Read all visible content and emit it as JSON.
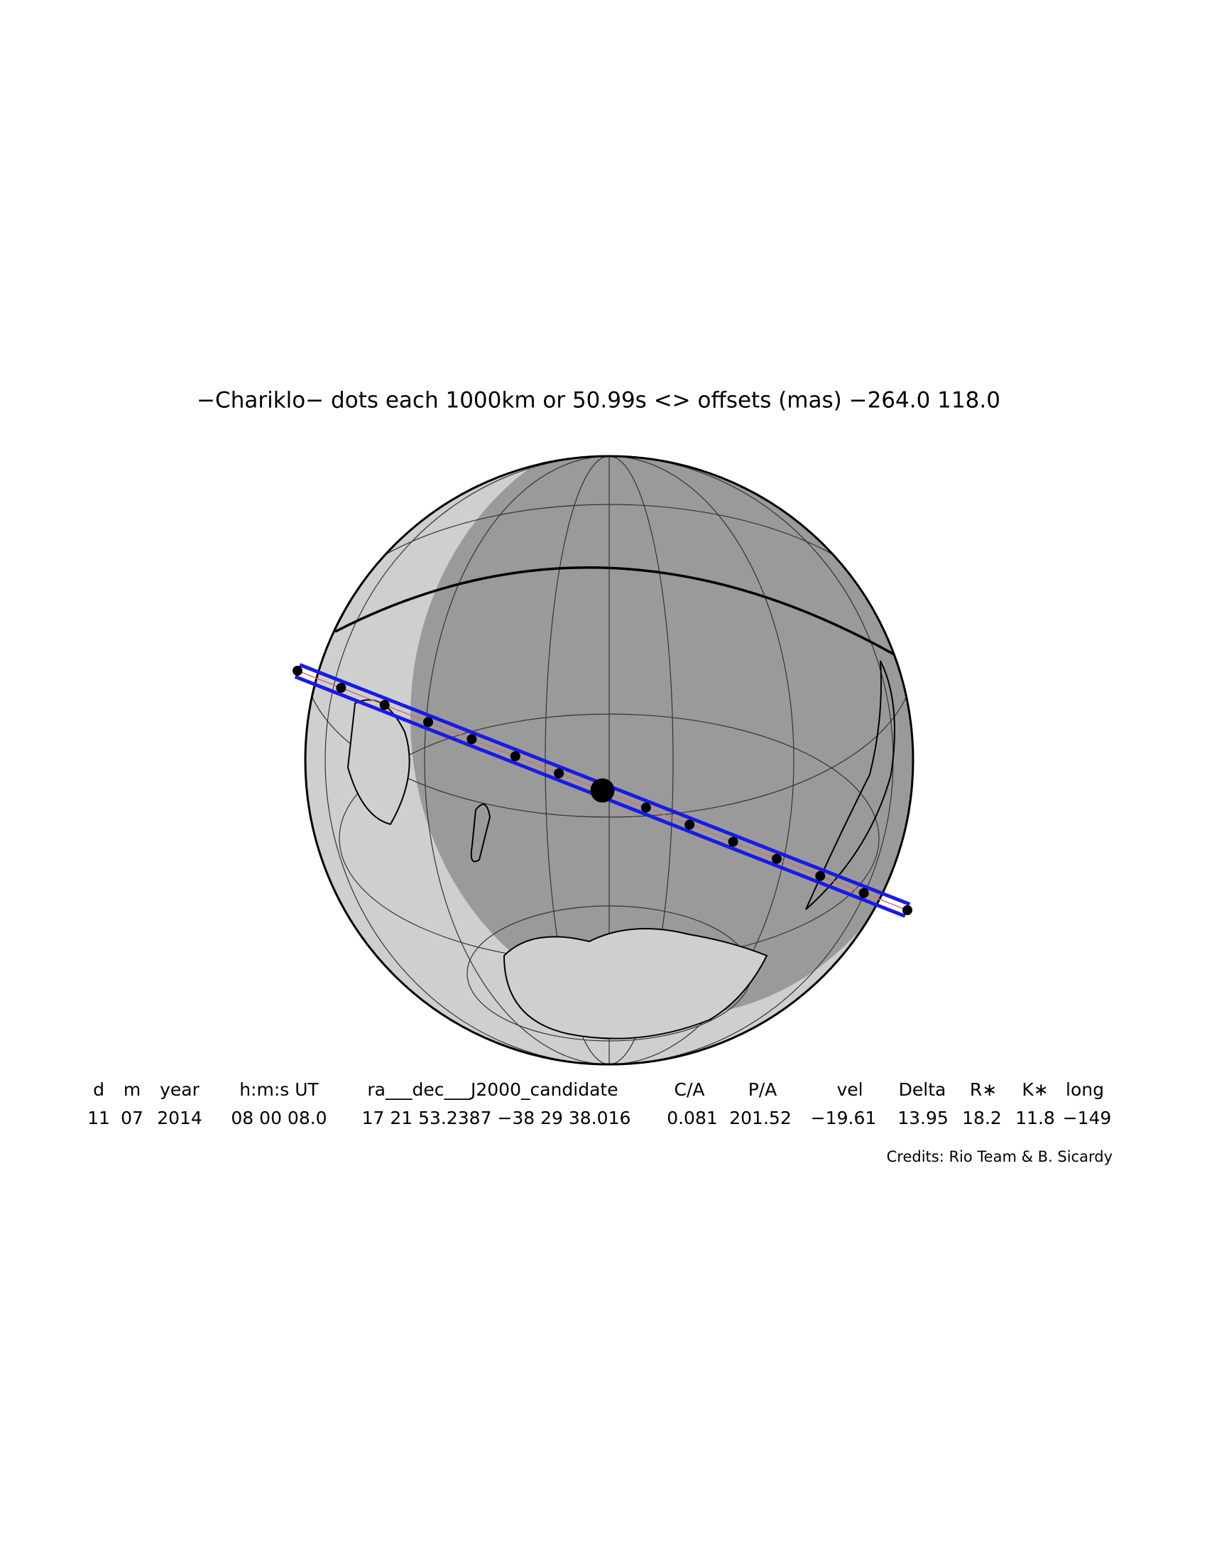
{
  "title": "−Chariklo− dots each 1000km or 50.99s <> offsets (mas) −264.0  118.0",
  "table": {
    "header": [
      "d",
      "m",
      "year",
      "h:m:s UT",
      "ra___dec___J2000_candidate",
      "C/A",
      "P/A",
      "vel",
      "Delta",
      "R∗",
      "K∗",
      "long"
    ],
    "row": [
      "11",
      "07",
      "2014",
      "08 00 08.0",
      "17 21 53.2387 −38 29 38.016",
      "0.081",
      "201.52",
      "−19.61",
      "13.95",
      "18.2",
      "11.8",
      "−149"
    ]
  },
  "credits": "Credits: Rio Team & B. Sicardy"
}
